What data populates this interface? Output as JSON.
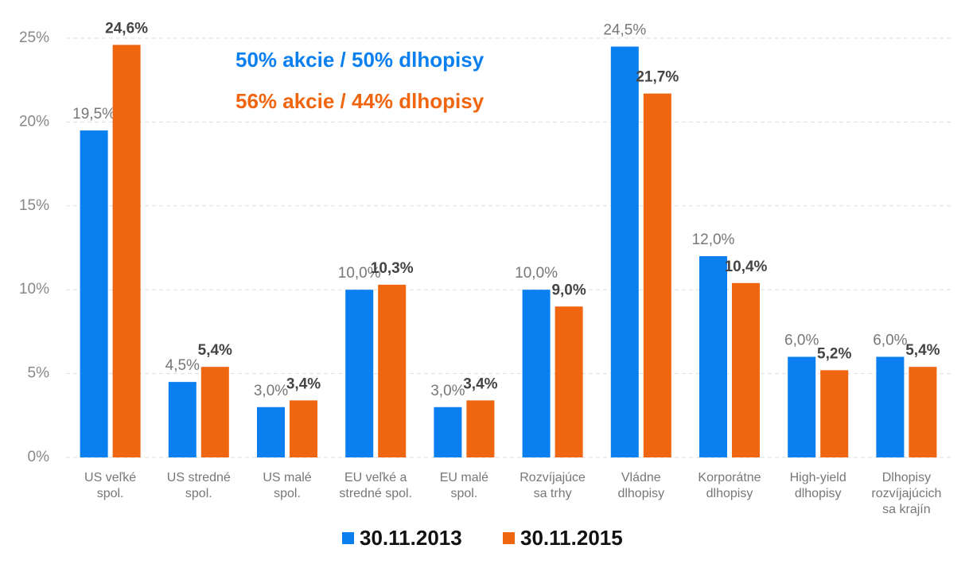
{
  "chart_data": {
    "type": "bar",
    "categories": [
      "US veľké\nspol.",
      "US stredné\nspol.",
      "US malé\nspol.",
      "EU veľké a\nstredné spol.",
      "EU malé\nspol.",
      "Rozvíjajúce\nsa trhy",
      "Vládne\ndlhopisy",
      "Korporátne\ndlhopisy",
      "High-yield\ndlhopisy",
      "Dlhopisy\nrozvíjajúcich\nsa krajín"
    ],
    "series": [
      {
        "name": "30.11.2013",
        "color": "#0a7ff0",
        "values": [
          19.5,
          4.5,
          3.0,
          10.0,
          3.0,
          10.0,
          24.5,
          12.0,
          6.0,
          6.0
        ],
        "value_labels": [
          "19,5%",
          "4,5%",
          "3,0%",
          "10,0%",
          "3,0%",
          "10,0%",
          "24,5%",
          "12,0%",
          "6,0%",
          "6,0%"
        ]
      },
      {
        "name": "30.11.2015",
        "color": "#f0650f",
        "values": [
          24.6,
          5.4,
          3.4,
          10.3,
          3.4,
          9.0,
          21.7,
          10.4,
          5.2,
          5.4
        ],
        "value_labels": [
          "24,6%",
          "5,4%",
          "3,4%",
          "10,3%",
          "3,4%",
          "9,0%",
          "21,7%",
          "10,4%",
          "5,2%",
          "5,4%"
        ]
      }
    ],
    "annotations": [
      {
        "text": "50% akcie / 50% dlhopisy",
        "color": "#0a7ff0"
      },
      {
        "text": "56% akcie / 44% dlhopisy",
        "color": "#f0650f"
      }
    ],
    "ylim": [
      0,
      25
    ],
    "yticks": [
      {
        "value": 0,
        "label": "0%"
      },
      {
        "value": 5,
        "label": "5%"
      },
      {
        "value": 10,
        "label": "10%"
      },
      {
        "value": 15,
        "label": "15%"
      },
      {
        "value": 20,
        "label": "20%"
      },
      {
        "value": 25,
        "label": "25%"
      }
    ],
    "grid": true,
    "legend": "bottom"
  }
}
